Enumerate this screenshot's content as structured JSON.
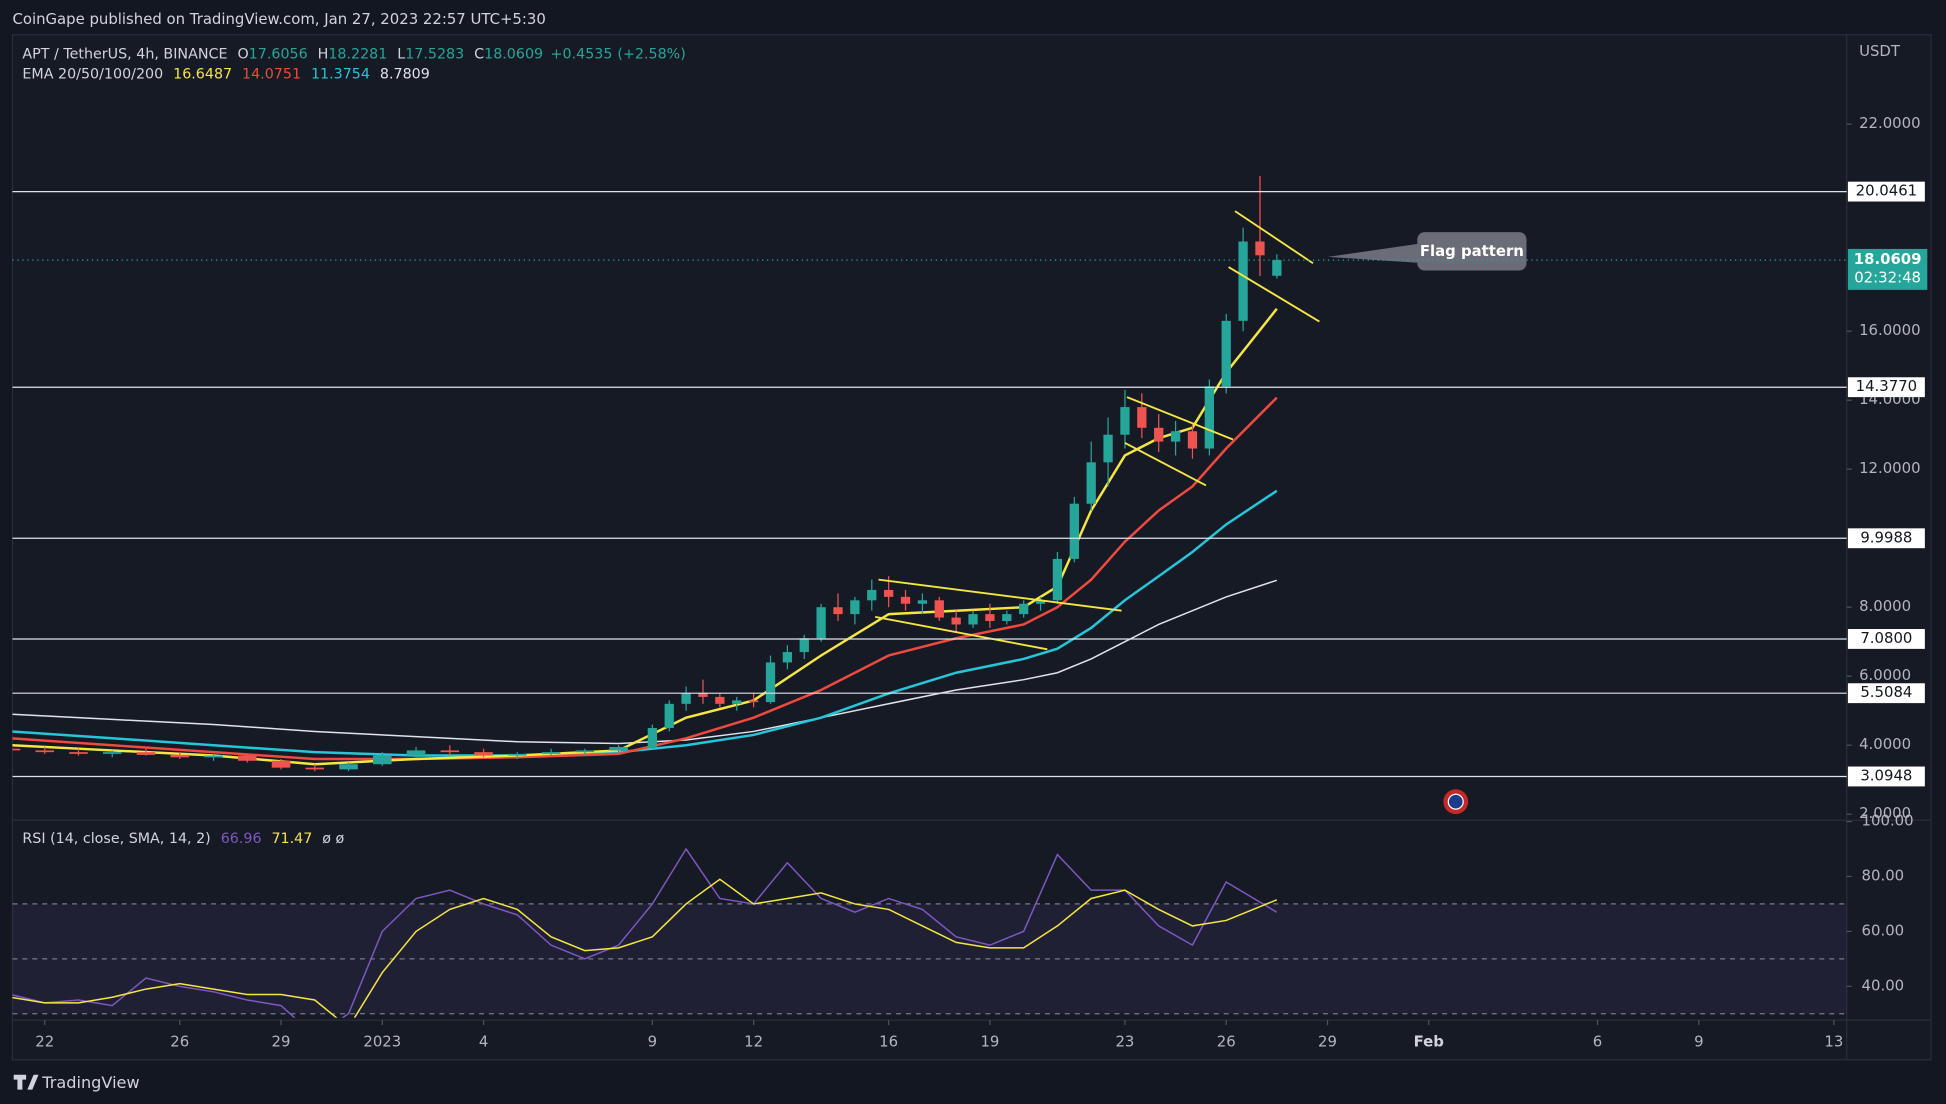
{
  "header": {
    "publisher": "CoinGape published on TradingView.com, Jan 27, 2023 22:57 UTC+5:30",
    "brand": "TradingView"
  },
  "chart_data": [
    {
      "type": "candlestick",
      "symbol": "APT / TetherUS, 4h, BINANCE",
      "unit": "USDT",
      "ohlc_letters": [
        "O",
        "H",
        "L",
        "C"
      ],
      "change": "+0.4535",
      "change_pct": "(+2.58%)",
      "countdown": "02:32:48",
      "indicator": "EMA 20/50/100/200",
      "annotation": "Flag pattern",
      "xlim": [
        -0.956,
        53.38
      ],
      "ylim": [
        1.86,
        24.52
      ],
      "xticks": [
        {
          "value": 0,
          "label": "22"
        },
        {
          "value": 4,
          "label": "26"
        },
        {
          "value": 7,
          "label": "29"
        },
        {
          "value": 10,
          "label": "2023"
        },
        {
          "value": 13,
          "label": "4"
        },
        {
          "value": 18,
          "label": "9"
        },
        {
          "value": 21,
          "label": "12"
        },
        {
          "value": 25,
          "label": "16"
        },
        {
          "value": 28,
          "label": "19"
        },
        {
          "value": 32,
          "label": "23"
        },
        {
          "value": 35,
          "label": "26"
        },
        {
          "value": 38,
          "label": "29"
        },
        {
          "value": 41,
          "label": "Feb"
        },
        {
          "value": 46,
          "label": "6"
        },
        {
          "value": 49,
          "label": "9"
        },
        {
          "value": 53,
          "label": "13"
        }
      ],
      "yticks": [
        {
          "value": 22,
          "label": "22.0000"
        },
        {
          "value": 16,
          "label": "16.0000"
        },
        {
          "value": 14,
          "label": "14.0000"
        },
        {
          "value": 12,
          "label": "12.0000"
        },
        {
          "value": 8,
          "label": "8.0000"
        },
        {
          "value": 6,
          "label": "6.0000"
        },
        {
          "value": 4,
          "label": "4.0000"
        },
        {
          "value": 2,
          "label": "2.0000"
        }
      ],
      "levels": [
        20.0461,
        {
          "value": 14.377,
          "label": "14.3770"
        },
        9.9988,
        {
          "value": 7.08,
          "label": "7.0800"
        },
        5.5084,
        3.0948
      ],
      "up_color": "#26a69a",
      "down_color": "#ef5350",
      "candles": {
        "x": [
          -1,
          0,
          1,
          2,
          3,
          4,
          5,
          6,
          7,
          8,
          9,
          10,
          11,
          12,
          13,
          14,
          15,
          16,
          17,
          18,
          18.5,
          19,
          19.5,
          20,
          20.5,
          21,
          21.5,
          22,
          22.5,
          23,
          23.5,
          24,
          24.5,
          25,
          25.5,
          26,
          26.5,
          27,
          27.5,
          28,
          28.5,
          29,
          29.5,
          30,
          30.5,
          31,
          31.5,
          32,
          32.5,
          33,
          33.5,
          34,
          34.5,
          35,
          35.5,
          36,
          36.5
        ],
        "open": [
          3.9,
          3.85,
          3.8,
          3.75,
          3.8,
          3.72,
          3.65,
          3.7,
          3.55,
          3.35,
          3.3,
          3.45,
          3.7,
          3.85,
          3.8,
          3.7,
          3.75,
          3.8,
          3.85,
          3.95,
          4.5,
          5.2,
          5.5,
          5.4,
          5.2,
          5.3,
          5.25,
          6.4,
          6.7,
          7.1,
          8.0,
          7.8,
          8.2,
          8.5,
          8.3,
          8.1,
          8.2,
          7.7,
          7.5,
          7.8,
          7.6,
          7.8,
          8.1,
          8.2,
          9.4,
          11.0,
          12.2,
          13.0,
          13.8,
          13.2,
          12.8,
          13.1,
          12.6,
          14.4,
          16.3,
          18.6,
          17.6056
        ],
        "high": [
          4.0,
          3.95,
          3.9,
          3.85,
          3.9,
          3.8,
          3.75,
          3.75,
          3.6,
          3.45,
          3.5,
          3.8,
          3.95,
          4.0,
          3.9,
          3.8,
          3.9,
          3.9,
          4.0,
          4.6,
          5.3,
          5.7,
          5.9,
          5.5,
          5.4,
          5.5,
          6.6,
          6.9,
          7.2,
          8.1,
          8.4,
          8.3,
          8.8,
          8.9,
          8.5,
          8.4,
          8.3,
          7.9,
          7.9,
          8.1,
          7.9,
          8.2,
          8.3,
          9.6,
          11.2,
          12.8,
          13.5,
          14.3,
          14.2,
          13.6,
          13.4,
          13.3,
          14.6,
          16.5,
          19.0,
          20.5,
          18.2281
        ],
        "low": [
          3.8,
          3.75,
          3.7,
          3.65,
          3.7,
          3.6,
          3.55,
          3.5,
          3.3,
          3.25,
          3.25,
          3.4,
          3.65,
          3.7,
          3.65,
          3.6,
          3.7,
          3.7,
          3.8,
          3.9,
          4.4,
          5.0,
          5.2,
          5.1,
          5.0,
          5.1,
          5.2,
          6.2,
          6.5,
          7.0,
          7.6,
          7.5,
          7.9,
          8.0,
          7.9,
          7.8,
          7.6,
          7.3,
          7.4,
          7.4,
          7.5,
          7.7,
          7.9,
          8.1,
          9.3,
          10.8,
          11.5,
          12.6,
          12.9,
          12.5,
          12.4,
          12.3,
          12.4,
          14.2,
          16.0,
          17.6,
          17.5283
        ],
        "close": [
          3.85,
          3.8,
          3.75,
          3.8,
          3.72,
          3.65,
          3.7,
          3.55,
          3.35,
          3.3,
          3.45,
          3.7,
          3.85,
          3.8,
          3.7,
          3.75,
          3.8,
          3.85,
          3.95,
          4.5,
          5.2,
          5.5,
          5.4,
          5.2,
          5.3,
          5.25,
          6.4,
          6.7,
          7.1,
          8.0,
          7.8,
          8.2,
          8.5,
          8.3,
          8.1,
          8.2,
          7.7,
          7.5,
          7.8,
          7.6,
          7.8,
          8.1,
          8.2,
          9.4,
          11.0,
          12.2,
          13.0,
          13.8,
          13.2,
          12.8,
          13.1,
          12.6,
          14.4,
          16.3,
          18.6,
          18.2,
          18.0609
        ]
      },
      "line_x": [
        -1,
        2,
        5,
        8,
        11,
        14,
        17,
        19,
        21,
        23,
        25,
        27,
        29,
        30,
        31,
        32,
        33,
        34,
        35,
        36.5
      ],
      "series": [
        {
          "color": "#f5e642",
          "values": [
            4.0,
            3.85,
            3.7,
            3.45,
            3.6,
            3.7,
            3.85,
            4.8,
            5.3,
            6.6,
            7.8,
            7.9,
            8.0,
            8.6,
            10.8,
            12.4,
            12.9,
            13.2,
            14.8,
            16.6487
          ]
        },
        {
          "color": "#f04a3e",
          "values": [
            4.2,
            4.0,
            3.8,
            3.6,
            3.6,
            3.65,
            3.75,
            4.2,
            4.8,
            5.6,
            6.6,
            7.1,
            7.5,
            8.0,
            8.8,
            9.9,
            10.8,
            11.5,
            12.6,
            14.0751
          ]
        },
        {
          "color": "#26c6da",
          "values": [
            4.4,
            4.2,
            4.0,
            3.8,
            3.7,
            3.7,
            3.8,
            4.0,
            4.3,
            4.8,
            5.5,
            6.1,
            6.5,
            6.8,
            7.4,
            8.2,
            8.9,
            9.6,
            10.4,
            11.3754
          ]
        },
        {
          "color": "#e0e3eb",
          "values": [
            4.9,
            4.75,
            4.6,
            4.4,
            4.25,
            4.1,
            4.05,
            4.15,
            4.4,
            4.8,
            5.2,
            5.6,
            5.9,
            6.1,
            6.5,
            7.0,
            7.5,
            7.9,
            8.3,
            8.7809
          ]
        }
      ],
      "drawings": [
        [
          24.7,
          8.8,
          31.9,
          7.9
        ],
        [
          24.6,
          7.72,
          29.7,
          6.78
        ],
        [
          32.06,
          14.09,
          35.2,
          12.86
        ],
        [
          32.0,
          12.76,
          34.4,
          11.53
        ],
        [
          35.26,
          19.48,
          37.57,
          17.97
        ],
        [
          35.07,
          17.86,
          37.76,
          16.28
        ]
      ],
      "drawing_color": "#f5e642"
    },
    {
      "type": "line",
      "title": "RSI (14, close, SMA, 14, 2)",
      "na": "ø ø",
      "ylim": [
        28.6,
        100
      ],
      "yticks": [
        {
          "value": 100,
          "label": "100.00"
        },
        {
          "value": 80,
          "label": "80.00"
        },
        {
          "value": 60,
          "label": "60.00"
        },
        {
          "value": 40,
          "label": "40.00"
        }
      ],
      "bands": [
        70,
        50,
        30
      ],
      "x": [
        -1,
        0,
        1,
        2,
        3,
        4,
        5,
        6,
        7,
        8,
        9,
        10,
        11,
        12,
        13,
        14,
        15,
        16,
        17,
        18,
        19,
        20,
        21,
        22,
        23,
        24,
        25,
        26,
        27,
        28,
        29,
        30,
        31,
        32,
        33,
        34,
        35,
        36.5
      ],
      "series": [
        {
          "color": "#7e57c2",
          "values": [
            37,
            34,
            35,
            33,
            43,
            40,
            38,
            35,
            33,
            22,
            30,
            60,
            72,
            75,
            70,
            66,
            55,
            50,
            55,
            70,
            90,
            72,
            70,
            85,
            72,
            67,
            72,
            68,
            58,
            55,
            60,
            88,
            75,
            75,
            62,
            55,
            78,
            66.96
          ]
        },
        {
          "color": "#f5e642",
          "values": [
            36,
            34,
            34,
            36,
            39,
            41,
            39,
            37,
            37,
            35,
            25,
            45,
            60,
            68,
            72,
            68,
            58,
            53,
            54,
            58,
            70,
            79,
            70,
            72,
            74,
            70,
            68,
            62,
            56,
            54,
            54,
            62,
            72,
            75,
            68,
            62,
            64,
            71.47
          ]
        }
      ]
    }
  ]
}
